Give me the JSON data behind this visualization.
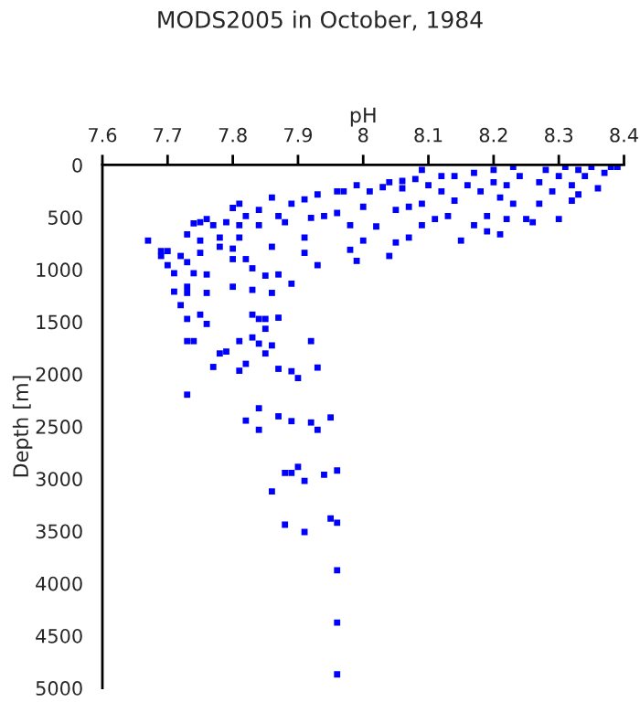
{
  "chart_data": {
    "type": "scatter",
    "title": "MODS2005 in October, 1984",
    "xlabel": "pH",
    "ylabel": "Depth [m]",
    "xlim": [
      7.6,
      8.4
    ],
    "xticks": [
      7.6,
      7.7,
      7.8,
      7.9,
      8,
      8.1,
      8.2,
      8.3,
      8.4
    ],
    "ylim": [
      5000,
      0
    ],
    "yticks": [
      0,
      500,
      1000,
      1500,
      2000,
      2500,
      3000,
      3500,
      4000,
      4500,
      5000
    ],
    "grid": false,
    "legend": false,
    "marker": "square",
    "series": [
      {
        "color": "#0000ff",
        "x": [
          7.67,
          7.69,
          7.69,
          7.7,
          7.7,
          7.71,
          7.71,
          7.72,
          7.72,
          7.73,
          7.73,
          7.73,
          7.73,
          7.74,
          7.75,
          7.75,
          7.75,
          7.76,
          7.76,
          7.74,
          7.76,
          7.77,
          7.78,
          7.78,
          7.79,
          7.8,
          7.8,
          7.8,
          7.8,
          7.81,
          7.81,
          7.81,
          7.82,
          7.82,
          7.83,
          7.83,
          7.84,
          7.84,
          7.85,
          7.86,
          7.86,
          7.86,
          7.87,
          7.87,
          7.88,
          7.89,
          7.89,
          7.91,
          7.91,
          7.91,
          7.92,
          7.93,
          7.93,
          7.94,
          7.96,
          7.96,
          7.97,
          7.98,
          7.98,
          7.99,
          7.99,
          8.0,
          8.0,
          8.01,
          8.02,
          8.03,
          8.04,
          8.04,
          8.05,
          8.05,
          8.06,
          8.06,
          8.07,
          8.07,
          8.08,
          8.09,
          8.09,
          8.09,
          8.1,
          8.11,
          8.12,
          8.12,
          8.13,
          8.14,
          8.14,
          8.15,
          8.16,
          8.17,
          8.17,
          8.18,
          8.19,
          8.19,
          8.2,
          8.2,
          8.21,
          8.21,
          8.22,
          8.22,
          8.23,
          8.23,
          8.24,
          8.25,
          8.26,
          8.27,
          8.27,
          8.28,
          8.29,
          8.3,
          8.3,
          8.31,
          8.32,
          8.32,
          8.33,
          8.33,
          8.34,
          8.35,
          8.36,
          8.37,
          8.38,
          8.39,
          7.73,
          7.75,
          7.76,
          7.73,
          7.74,
          7.78,
          7.79,
          7.77,
          7.81,
          7.81,
          7.82,
          7.83,
          7.84,
          7.85,
          7.85,
          7.83,
          7.84,
          7.86,
          7.85,
          7.87,
          7.87,
          7.89,
          7.9,
          7.92,
          7.93,
          7.73,
          7.84,
          7.82,
          7.84,
          7.87,
          7.89,
          7.92,
          7.93,
          7.95,
          7.88,
          7.89,
          7.9,
          7.91,
          7.94,
          7.96,
          7.86,
          7.95,
          7.96,
          7.88,
          7.91,
          7.96,
          7.96,
          7.96
        ],
        "values": [
          723,
          823,
          870,
          823,
          958,
          1035,
          1211,
          870,
          1340,
          664,
          1164,
          1223,
          929,
          559,
          547,
          723,
          840,
          1047,
          1223,
          1035,
          517,
          576,
          782,
          694,
          547,
          411,
          800,
          900,
          1164,
          370,
          694,
          576,
          900,
          488,
          988,
          1194,
          576,
          429,
          1058,
          312,
          782,
          1223,
          488,
          1047,
          547,
          370,
          1135,
          329,
          694,
          840,
          506,
          282,
          958,
          488,
          253,
          459,
          253,
          576,
          811,
          917,
          194,
          723,
          400,
          253,
          588,
          212,
          870,
          165,
          741,
          429,
          153,
          223,
          400,
          694,
          135,
          47,
          370,
          576,
          194,
          517,
          106,
          253,
          488,
          341,
          106,
          723,
          194,
          576,
          76,
          253,
          488,
          635,
          165,
          47,
          312,
          664,
          517,
          194,
          18,
          370,
          106,
          517,
          547,
          370,
          165,
          47,
          253,
          517,
          106,
          18,
          341,
          194,
          47,
          282,
          106,
          18,
          223,
          76,
          18,
          18,
          1472,
          1431,
          1520,
          1684,
          1684,
          1802,
          1784,
          1931,
          1684,
          1967,
          1901,
          1431,
          1472,
          1472,
          1566,
          1649,
          1708,
          1725,
          1802,
          1460,
          1949,
          1972,
          2037,
          1684,
          1937,
          2196,
          2326,
          2444,
          2532,
          2403,
          2449,
          2462,
          2532,
          2414,
          2944,
          2944,
          2886,
          3021,
          2962,
          2921,
          3121,
          3380,
          3421,
          3439,
          3509,
          3875,
          4375,
          4870
        ]
      }
    ]
  }
}
